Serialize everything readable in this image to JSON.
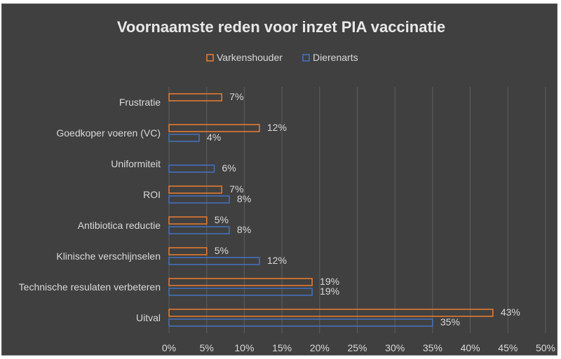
{
  "chart_data": {
    "type": "bar",
    "orientation": "horizontal",
    "title": "Voornaamste reden voor inzet PIA vaccinatie",
    "categories": [
      "Frustratie",
      "Goedkoper voeren (VC)",
      "Uniformiteit",
      "ROI",
      "Antibiotica reductie",
      "Klinische verschijnselen",
      "Technische resulaten verbeteren",
      "Uitval"
    ],
    "series": [
      {
        "name": "Varkenshouder",
        "color": "#ed7d31",
        "values": [
          7,
          12,
          null,
          7,
          5,
          5,
          19,
          43
        ],
        "labels": [
          "7%",
          "12%",
          "",
          "7%",
          "5%",
          "5%",
          "19%",
          "43%"
        ]
      },
      {
        "name": "Dierenarts",
        "color": "#4472c4",
        "values": [
          null,
          4,
          6,
          8,
          8,
          12,
          19,
          35
        ],
        "labels": [
          "",
          "4%",
          "6%",
          "8%",
          "8%",
          "12%",
          "19%",
          "35%"
        ]
      }
    ],
    "xlim": [
      0,
      50
    ],
    "xticks": [
      0,
      5,
      10,
      15,
      20,
      25,
      30,
      35,
      40,
      45,
      50
    ],
    "xtick_labels": [
      "0%",
      "5%",
      "10%",
      "15%",
      "20%",
      "25%",
      "30%",
      "35%",
      "40%",
      "45%",
      "50%"
    ],
    "grid": true,
    "legend_position": "top",
    "xlabel": "",
    "ylabel": ""
  }
}
